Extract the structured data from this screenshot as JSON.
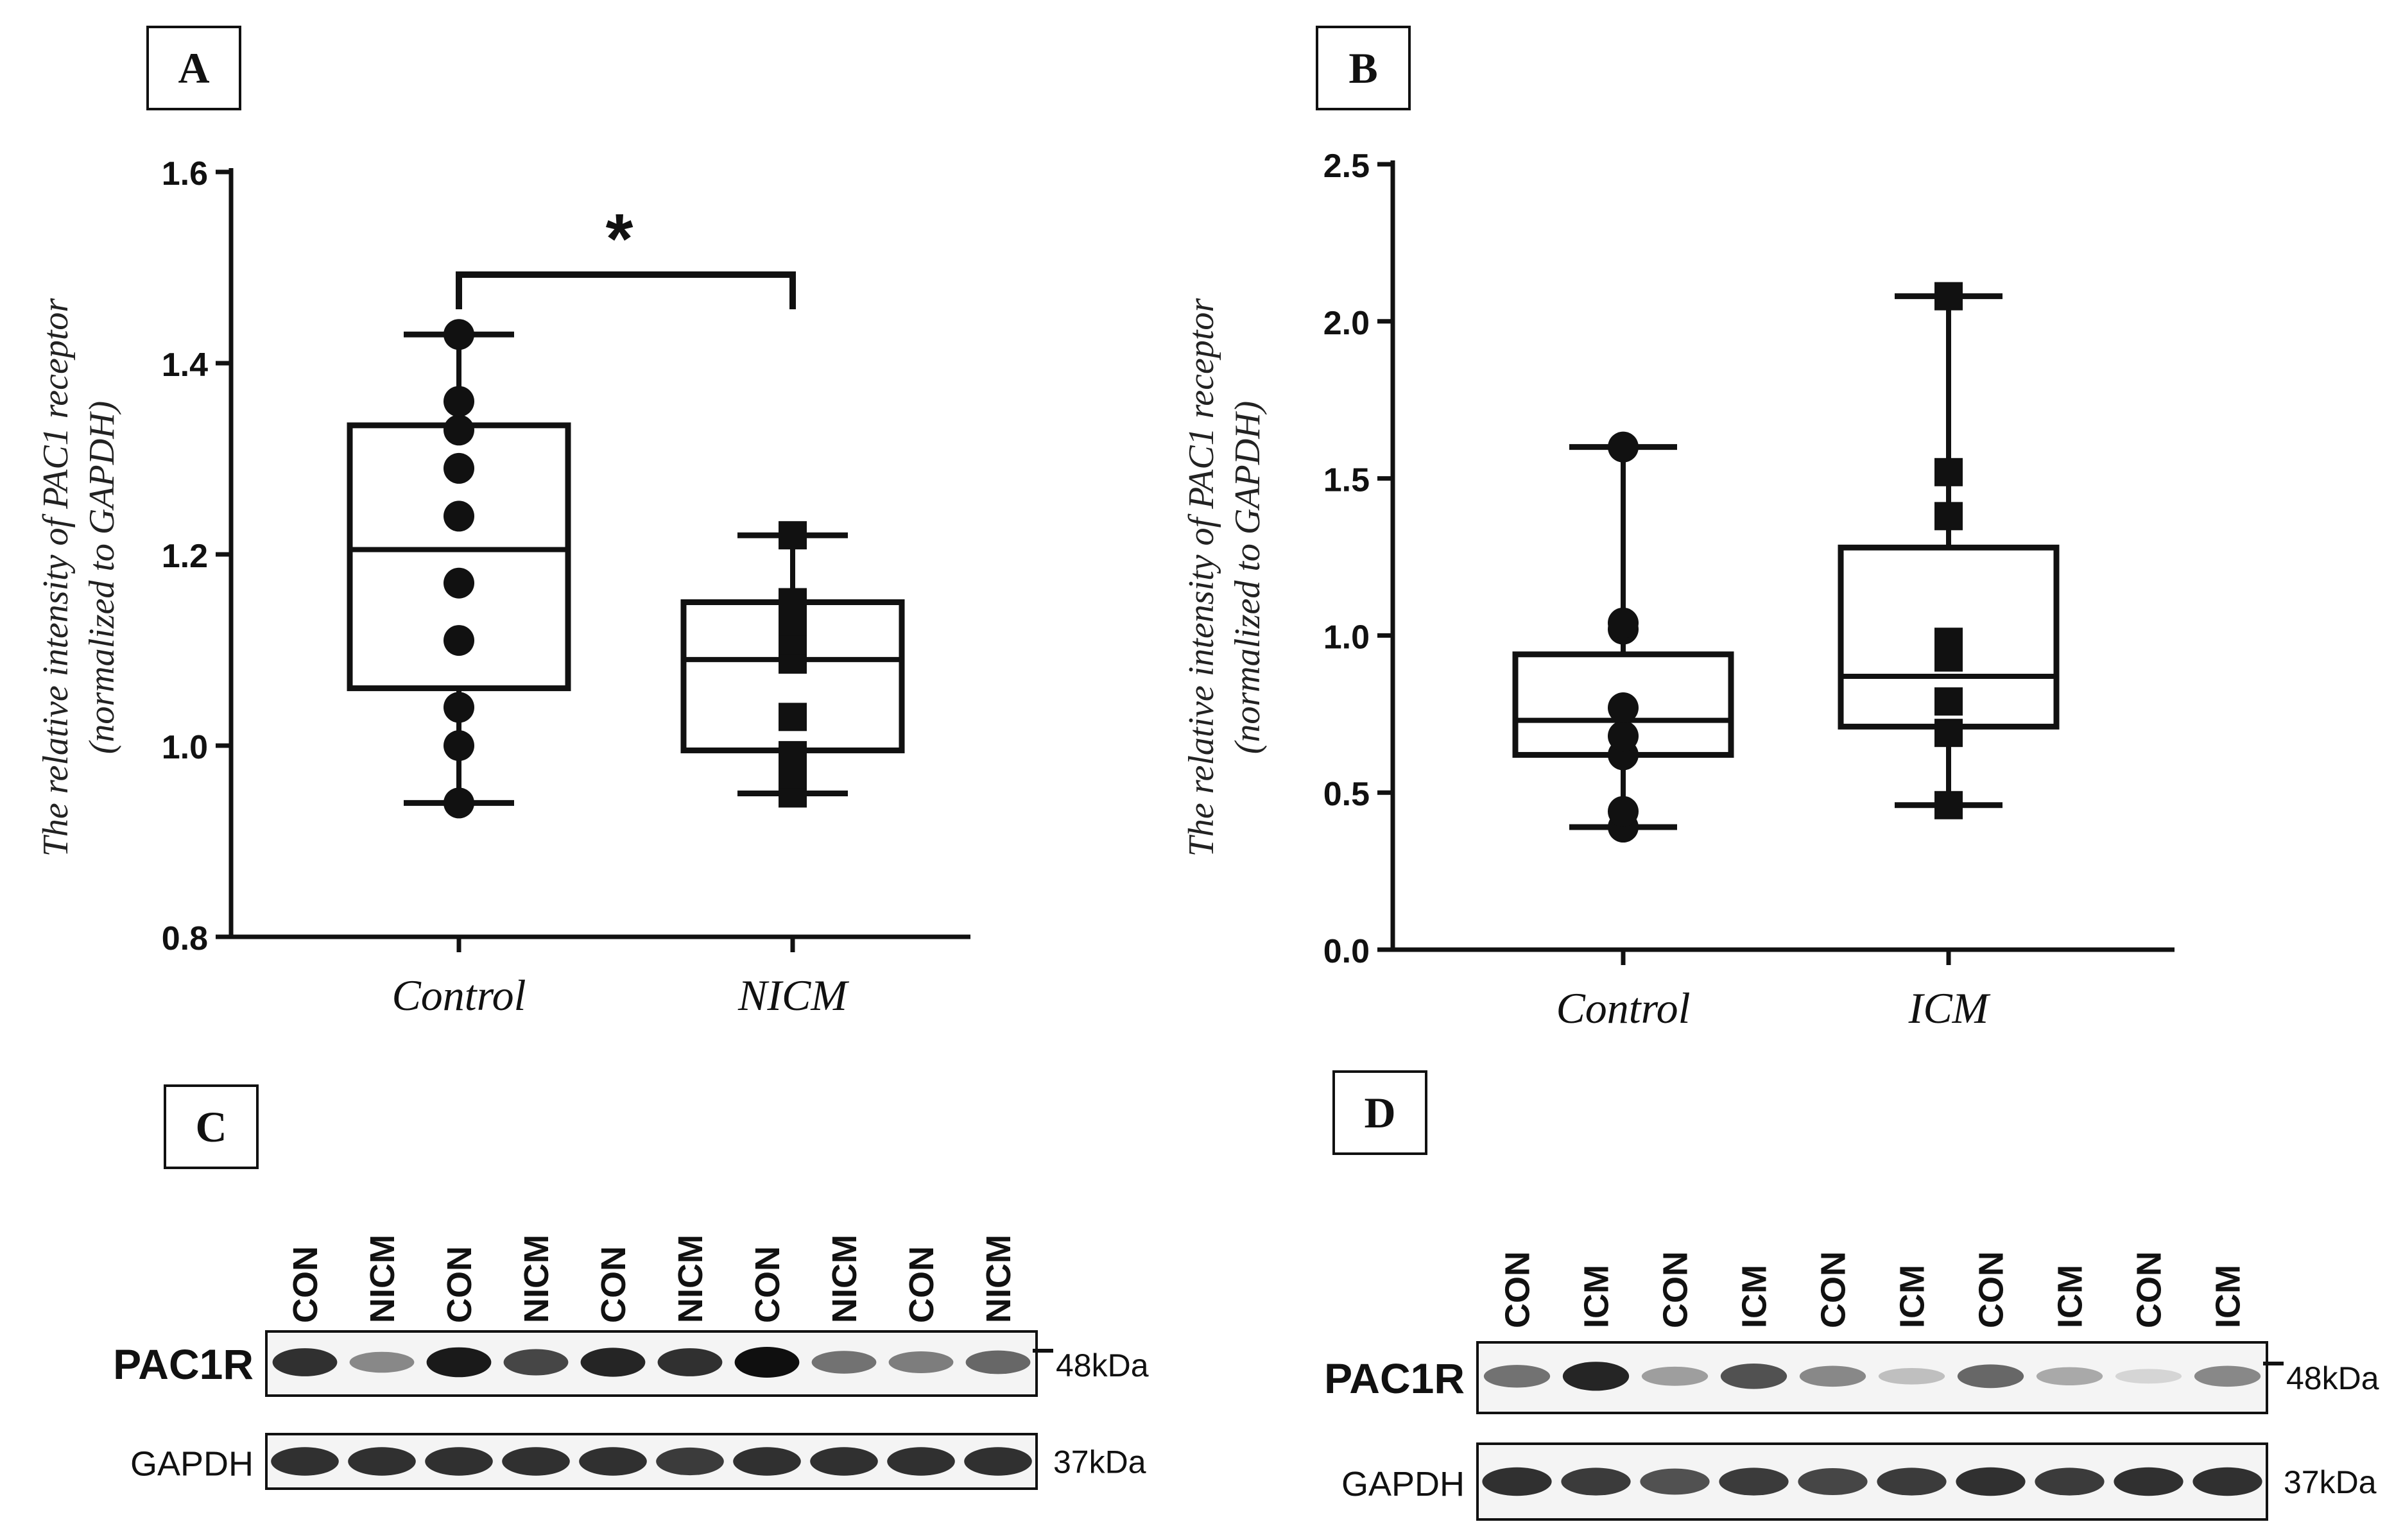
{
  "panels": {
    "A": {
      "label": "A"
    },
    "B": {
      "label": "B"
    },
    "C": {
      "label": "C"
    },
    "D": {
      "label": "D"
    }
  },
  "chart_data": [
    {
      "type": "box",
      "panel": "A",
      "ylabel_line1": "The relative intensity of PAC1 receptor",
      "ylabel_line2": "(normalized to GAPDH)",
      "yticks": [
        "0.8",
        "1.0",
        "1.2",
        "1.4",
        "1.6"
      ],
      "ylim": [
        0.8,
        1.6
      ],
      "categories": [
        "Control",
        "NICM"
      ],
      "significance": "*",
      "series": [
        {
          "name": "Control",
          "marker": "circle",
          "min": 0.94,
          "q1": 1.06,
          "median": 1.205,
          "q3": 1.335,
          "max": 1.43,
          "points": [
            0.94,
            1.0,
            1.04,
            1.11,
            1.17,
            1.24,
            1.29,
            1.33,
            1.36,
            1.43
          ]
        },
        {
          "name": "NICM",
          "marker": "square",
          "min": 0.95,
          "q1": 0.995,
          "median": 1.09,
          "q3": 1.15,
          "max": 1.22,
          "points": [
            0.95,
            0.97,
            0.99,
            1.03,
            1.09,
            1.11,
            1.13,
            1.15,
            1.22
          ]
        }
      ]
    },
    {
      "type": "box",
      "panel": "B",
      "ylabel_line1": "The relative intensity of PAC1 receptor",
      "ylabel_line2": "(normalized to GAPDH)",
      "yticks": [
        "0.0",
        "0.5",
        "1.0",
        "1.5",
        "2.0",
        "2.5"
      ],
      "ylim": [
        0.0,
        2.5
      ],
      "categories": [
        "Control",
        "ICM"
      ],
      "series": [
        {
          "name": "Control",
          "marker": "circle",
          "min": 0.39,
          "q1": 0.62,
          "median": 0.73,
          "q3": 0.94,
          "max": 1.6,
          "points": [
            0.39,
            0.44,
            0.62,
            0.68,
            0.77,
            1.02,
            1.04,
            1.6
          ]
        },
        {
          "name": "ICM",
          "marker": "square",
          "min": 0.46,
          "q1": 0.71,
          "median": 0.87,
          "q3": 1.28,
          "max": 2.08,
          "points": [
            0.46,
            0.69,
            0.79,
            0.93,
            0.98,
            1.38,
            1.52,
            2.08
          ]
        }
      ]
    }
  ],
  "blots": {
    "C": {
      "lanes": [
        "CON",
        "NICM",
        "CON",
        "NICM",
        "CON",
        "NICM",
        "CON",
        "NICM",
        "CON",
        "NICM"
      ],
      "target_label": "PAC1R",
      "target_kda": "48kDa",
      "control_label": "GAPDH",
      "control_kda": "37kDa",
      "target_intensity": [
        0.85,
        0.45,
        0.95,
        0.75,
        0.9,
        0.85,
        1.0,
        0.55,
        0.5,
        0.6
      ],
      "control_intensity": [
        0.85,
        0.85,
        0.85,
        0.85,
        0.85,
        0.8,
        0.85,
        0.85,
        0.85,
        0.85
      ]
    },
    "D": {
      "lanes": [
        "CON",
        "ICM",
        "CON",
        "ICM",
        "CON",
        "ICM",
        "CON",
        "ICM",
        "CON",
        "ICM"
      ],
      "target_label": "PAC1R",
      "target_kda": "48kDa",
      "control_label": "GAPDH",
      "control_kda": "37kDa",
      "target_intensity": [
        0.55,
        0.9,
        0.35,
        0.7,
        0.45,
        0.2,
        0.6,
        0.3,
        0.1,
        0.45
      ],
      "control_intensity": [
        0.85,
        0.8,
        0.7,
        0.8,
        0.75,
        0.8,
        0.85,
        0.8,
        0.85,
        0.85
      ]
    }
  }
}
